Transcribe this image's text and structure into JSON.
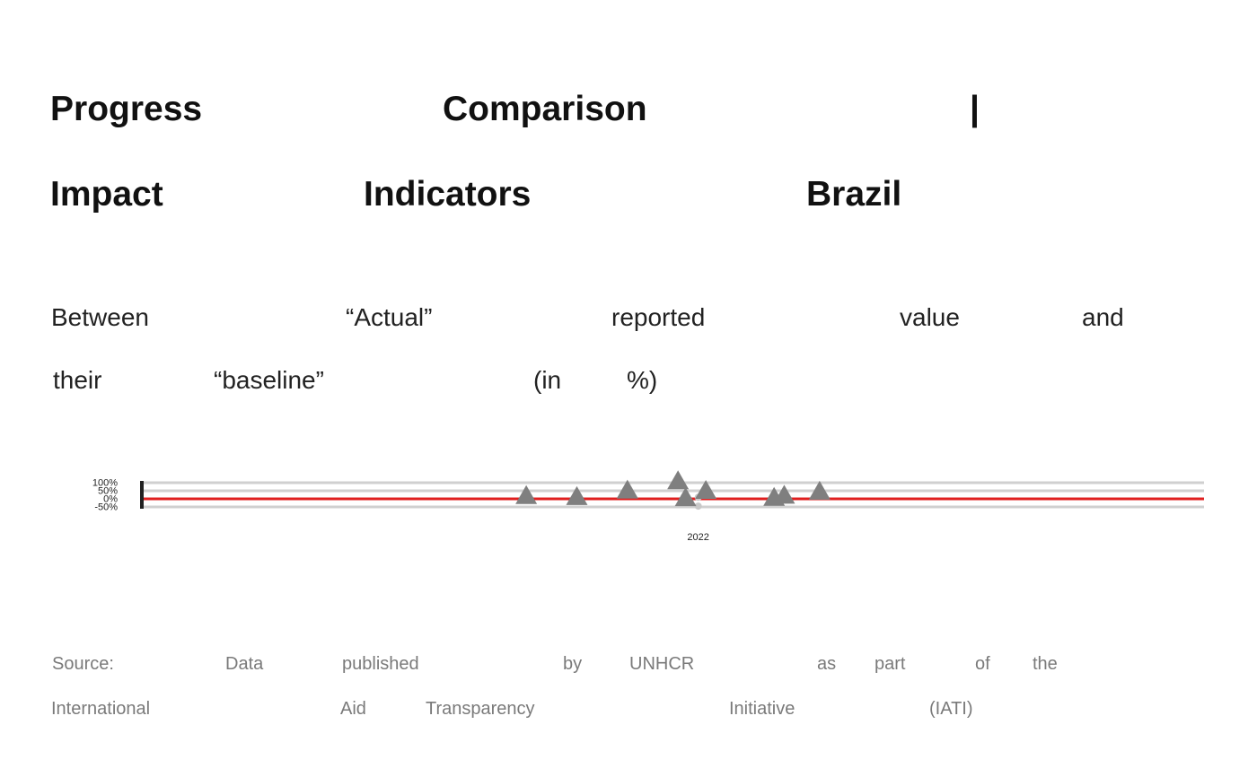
{
  "title": {
    "words": [
      "Progress",
      "Comparison",
      "|",
      "Impact",
      "Indicators",
      "Brazil"
    ]
  },
  "subtitle": {
    "words": [
      "Between",
      "“Actual”",
      "reported",
      "value",
      "and",
      "their",
      "“baseline”",
      "(in",
      "%)"
    ]
  },
  "source": {
    "words": [
      "Source:",
      "Data",
      "published",
      "by",
      "UNHCR",
      "as",
      "part",
      "of",
      "the",
      "International",
      "Aid",
      "Transparency",
      "Initiative",
      "(IATI)"
    ]
  },
  "colors": {
    "reference_line": "#e02020",
    "marker": "#7f7f7f",
    "marker_light": "#c8c8c8",
    "gridline": "#d0d0d0",
    "axis": "#222222"
  },
  "chart_data": {
    "type": "scatter",
    "marker": "triangle",
    "x_tick_labels": [
      "2022"
    ],
    "y_tick_labels": [
      "100%",
      "50%",
      "0%",
      "-50%"
    ],
    "y_ticks": [
      100,
      50,
      0,
      -50
    ],
    "ylim": [
      -50,
      100
    ],
    "xlim": [
      2011.0,
      2032.0
    ],
    "grid": true,
    "reference_line": {
      "y": 0
    },
    "points": [
      {
        "x": 2018.6,
        "y": 18
      },
      {
        "x": 2019.6,
        "y": 12
      },
      {
        "x": 2020.6,
        "y": 52
      },
      {
        "x": 2021.6,
        "y": 110
      },
      {
        "x": 2022.15,
        "y": 50
      },
      {
        "x": 2021.75,
        "y": 5
      },
      {
        "x": 2023.5,
        "y": 7
      },
      {
        "x": 2023.7,
        "y": 20
      },
      {
        "x": 2024.4,
        "y": 45
      }
    ],
    "light_points": [
      {
        "x": 2022.0,
        "y": 10
      },
      {
        "x": 2022.0,
        "y": -45
      }
    ]
  }
}
